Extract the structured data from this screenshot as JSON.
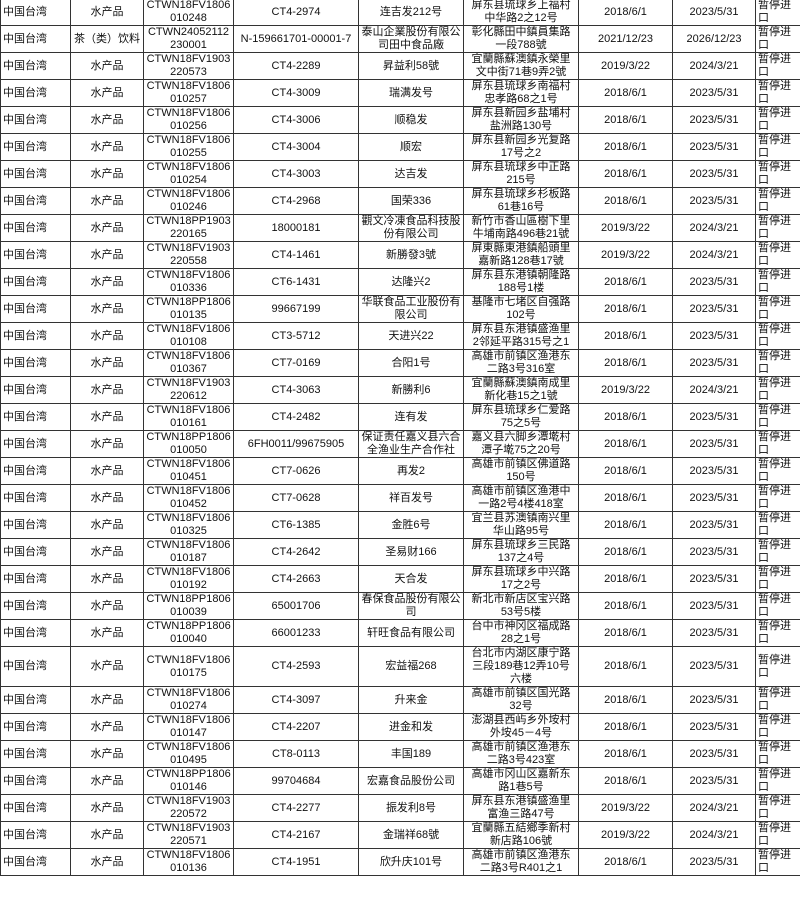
{
  "rows": [
    [
      "中国台湾",
      "水产品",
      "CTWN18FV1806010248",
      "CT4-2974",
      "连吉发212号",
      "屏东县琉球乡上福村中华路2之12号",
      "2018/6/1",
      "2023/5/31",
      "暂停进口"
    ],
    [
      "中国台湾",
      "茶（类）饮料",
      "CTWN24052112230001",
      "N-159661701-00001-7",
      "泰山企業股份有限公司田中食品廠",
      "彰化縣田中鎮員集路一段788號",
      "2021/12/23",
      "2026/12/23",
      "暂停进口"
    ],
    [
      "中国台湾",
      "水产品",
      "CTWN18FV1903220573",
      "CT4-2289",
      "昇益利58號",
      "宜蘭縣蘇澳鎮永榮里文中街71巷9弄2號",
      "2019/3/22",
      "2024/3/21",
      "暂停进口"
    ],
    [
      "中国台湾",
      "水产品",
      "CTWN18FV1806010257",
      "CT4-3009",
      "瑞满发号",
      "屏东县琉球乡南福村忠孝路68之1号",
      "2018/6/1",
      "2023/5/31",
      "暂停进口"
    ],
    [
      "中国台湾",
      "水产品",
      "CTWN18FV1806010256",
      "CT4-3006",
      "顺稳发",
      "屏东县新园乡盐埔村盐洲路130号",
      "2018/6/1",
      "2023/5/31",
      "暂停进口"
    ],
    [
      "中国台湾",
      "水产品",
      "CTWN18FV1806010255",
      "CT4-3004",
      "顺宏",
      "屏东县新园乡光复路17号之2",
      "2018/6/1",
      "2023/5/31",
      "暂停进口"
    ],
    [
      "中国台湾",
      "水产品",
      "CTWN18FV1806010254",
      "CT4-3003",
      "达吉发",
      "屏东县琉球乡中正路215号",
      "2018/6/1",
      "2023/5/31",
      "暂停进口"
    ],
    [
      "中国台湾",
      "水产品",
      "CTWN18FV1806010246",
      "CT4-2968",
      "国荣336",
      "屏东县琉球乡杉板路61巷16号",
      "2018/6/1",
      "2023/5/31",
      "暂停进口"
    ],
    [
      "中国台湾",
      "水产品",
      "CTWN18PP1903220165",
      "18000181",
      "觀文冷凍食品科技股份有限公司",
      "新竹市香山區樹下里牛埔南路496巷21號",
      "2019/3/22",
      "2024/3/21",
      "暂停进口"
    ],
    [
      "中国台湾",
      "水产品",
      "CTWN18FV1903220558",
      "CT4-1461",
      "新勝發3號",
      "屏東縣東港鎮船頭里嘉新路128巷17號",
      "2019/3/22",
      "2024/3/21",
      "暂停进口"
    ],
    [
      "中国台湾",
      "水产品",
      "CTWN18FV1806010336",
      "CT6-1431",
      "达隆兴2",
      "屏东县东港镇朝隆路188号1楼",
      "2018/6/1",
      "2023/5/31",
      "暂停进口"
    ],
    [
      "中国台湾",
      "水产品",
      "CTWN18PP1806010135",
      "99667199",
      "华联食品工业股份有限公司",
      "基隆市七堵区自强路102号",
      "2018/6/1",
      "2023/5/31",
      "暂停进口"
    ],
    [
      "中国台湾",
      "水产品",
      "CTWN18FV1806010108",
      "CT3-5712",
      "天进兴22",
      "屏东县东港镇盛渔里2邻延平路315号之1",
      "2018/6/1",
      "2023/5/31",
      "暂停进口"
    ],
    [
      "中国台湾",
      "水产品",
      "CTWN18FV1806010367",
      "CT7-0169",
      "合阳1号",
      "高雄市前镇区渔港东二路3号316室",
      "2018/6/1",
      "2023/5/31",
      "暂停进口"
    ],
    [
      "中国台湾",
      "水产品",
      "CTWN18FV1903220612",
      "CT4-3063",
      "新勝利6",
      "宜蘭縣蘇澳鎮南成里新化巷15之1號",
      "2019/3/22",
      "2024/3/21",
      "暂停进口"
    ],
    [
      "中国台湾",
      "水产品",
      "CTWN18FV1806010161",
      "CT4-2482",
      "连有发",
      "屏东县琉球乡仁爱路75之5号",
      "2018/6/1",
      "2023/5/31",
      "暂停进口"
    ],
    [
      "中国台湾",
      "水产品",
      "CTWN18PP1806010050",
      "6FH0011/99675905",
      "保证责任嘉义县六合全渔业生产合作社",
      "嘉义县六脚乡潭墘村潭子墘75之20号",
      "2018/6/1",
      "2023/5/31",
      "暂停进口"
    ],
    [
      "中国台湾",
      "水产品",
      "CTWN18FV1806010451",
      "CT7-0626",
      "再发2",
      "高雄市前镇区佛道路150号",
      "2018/6/1",
      "2023/5/31",
      "暂停进口"
    ],
    [
      "中国台湾",
      "水产品",
      "CTWN18FV1806010452",
      "CT7-0628",
      "祥百发号",
      "高雄市前镇区渔港中一路2号4楼418室",
      "2018/6/1",
      "2023/5/31",
      "暂停进口"
    ],
    [
      "中国台湾",
      "水产品",
      "CTWN18FV1806010325",
      "CT6-1385",
      "金胜6号",
      "宜兰县苏澳镇南兴里华山路95号",
      "2018/6/1",
      "2023/5/31",
      "暂停进口"
    ],
    [
      "中国台湾",
      "水产品",
      "CTWN18FV1806010187",
      "CT4-2642",
      "圣易财166",
      "屏东县琉球乡三民路137之4号",
      "2018/6/1",
      "2023/5/31",
      "暂停进口"
    ],
    [
      "中国台湾",
      "水产品",
      "CTWN18FV1806010192",
      "CT4-2663",
      "天合发",
      "屏东县琉球乡中兴路17之2号",
      "2018/6/1",
      "2023/5/31",
      "暂停进口"
    ],
    [
      "中国台湾",
      "水产品",
      "CTWN18PP1806010039",
      "65001706",
      "春保食品股份有限公司",
      "新北市新店区宝兴路53号5楼",
      "2018/6/1",
      "2023/5/31",
      "暂停进口"
    ],
    [
      "中国台湾",
      "水产品",
      "CTWN18PP1806010040",
      "66001233",
      "轩旺食品有限公司",
      "台中市神冈区福成路28之1号",
      "2018/6/1",
      "2023/5/31",
      "暂停进口"
    ],
    [
      "中国台湾",
      "水产品",
      "CTWN18FV1806010175",
      "CT4-2593",
      "宏益福268",
      "台北市内湖区康宁路三段189巷12弄10号六楼",
      "2018/6/1",
      "2023/5/31",
      "暂停进口"
    ],
    [
      "中国台湾",
      "水产品",
      "CTWN18FV1806010274",
      "CT4-3097",
      "升来金",
      "高雄市前镇区国光路32号",
      "2018/6/1",
      "2023/5/31",
      "暂停进口"
    ],
    [
      "中国台湾",
      "水产品",
      "CTWN18FV1806010147",
      "CT4-2207",
      "进金和发",
      "澎湖县西屿乡外垵村外垵45－4号",
      "2018/6/1",
      "2023/5/31",
      "暂停进口"
    ],
    [
      "中国台湾",
      "水产品",
      "CTWN18FV1806010495",
      "CT8-0113",
      "丰国189",
      "高雄市前镇区渔港东二路3号423室",
      "2018/6/1",
      "2023/5/31",
      "暂停进口"
    ],
    [
      "中国台湾",
      "水产品",
      "CTWN18PP1806010146",
      "99704684",
      "宏嘉食品股份公司",
      "高雄市冈山区嘉新东路1巷5号",
      "2018/6/1",
      "2023/5/31",
      "暂停进口"
    ],
    [
      "中国台湾",
      "水产品",
      "CTWN18FV1903220572",
      "CT4-2277",
      "振发利8号",
      "屏东县东港镇盛渔里富渔三路47号",
      "2019/3/22",
      "2024/3/21",
      "暂停进口"
    ],
    [
      "中国台湾",
      "水产品",
      "CTWN18FV1903220571",
      "CT4-2167",
      "金瑞祥68號",
      "宜蘭縣五結鄉季新村新店路106號",
      "2019/3/22",
      "2024/3/21",
      "暂停进口"
    ],
    [
      "中国台湾",
      "水产品",
      "CTWN18FV1806010136",
      "CT4-1951",
      "欣升庆101号",
      "高雄市前镇区渔港东二路3号R401之1",
      "2018/6/1",
      "2023/5/31",
      "暂停进口"
    ]
  ]
}
